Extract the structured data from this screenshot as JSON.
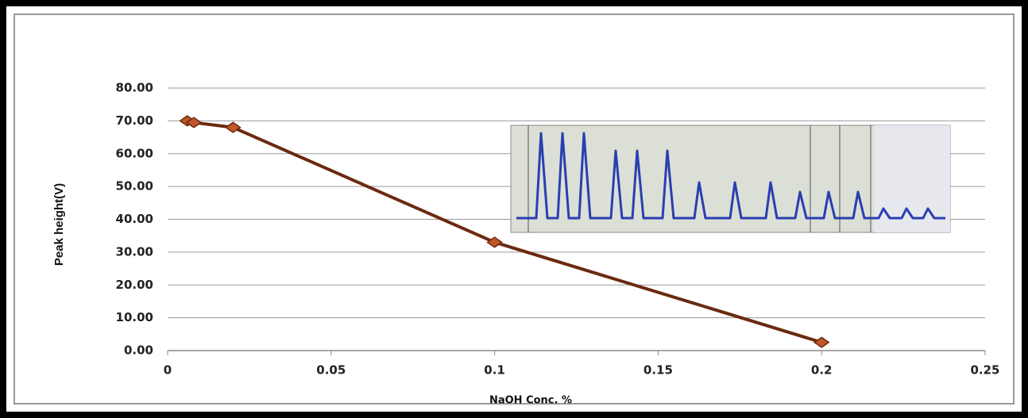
{
  "chart_data": {
    "type": "line",
    "xlabel": "NaOH Conc. %",
    "ylabel": "Peak height(V)",
    "x": [
      0.006,
      0.008,
      0.02,
      0.1,
      0.2
    ],
    "values": [
      70,
      69.5,
      68,
      33,
      2.5
    ],
    "line_color": "#6b2a10",
    "marker_color": "#c0562a",
    "xlim": [
      0,
      0.25
    ],
    "xticks": [
      0,
      0.05,
      0.1,
      0.15,
      0.2,
      0.25
    ],
    "ylim": [
      0,
      80
    ],
    "yticks": [
      {
        "value": 0,
        "label": "0.00"
      },
      {
        "value": 10,
        "label": "10.00"
      },
      {
        "value": 20,
        "label": "20.00"
      },
      {
        "value": 30,
        "label": "30.00"
      },
      {
        "value": 40,
        "label": "40.00"
      },
      {
        "value": 50,
        "label": "50.00"
      },
      {
        "value": 60,
        "label": "60.00"
      },
      {
        "value": 70,
        "label": "70.00"
      },
      {
        "value": 80,
        "label": "80.00"
      }
    ],
    "grid": true
  }
}
